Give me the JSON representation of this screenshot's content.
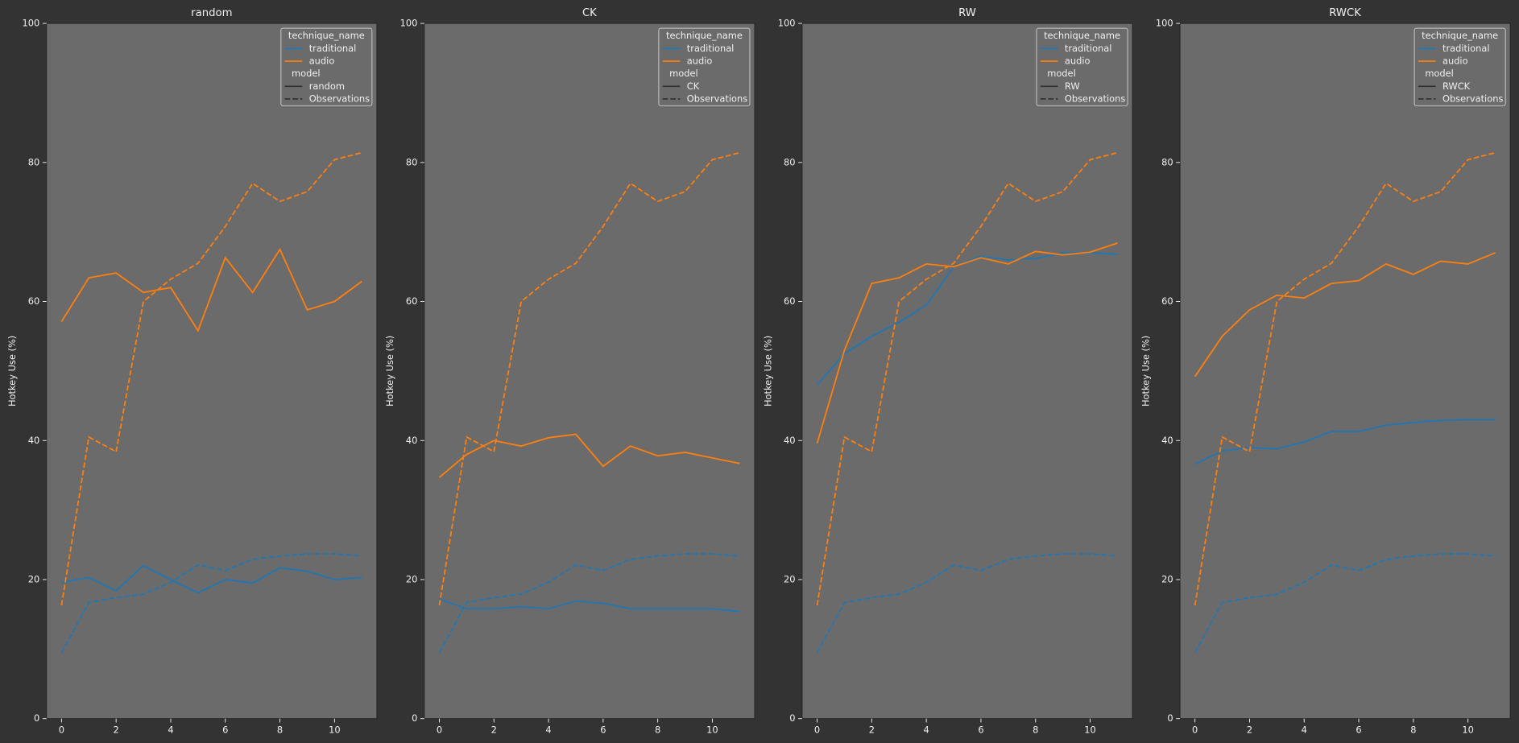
{
  "chart_data": [
    {
      "type": "line",
      "title": "random",
      "ylabel": "Hotkey Use (%)",
      "x": [
        0,
        1,
        2,
        3,
        4,
        5,
        6,
        7,
        8,
        9,
        10,
        11
      ],
      "xlim": [
        -0.55,
        11.55
      ],
      "xticks": [
        0,
        2,
        4,
        6,
        8,
        10
      ],
      "ylim": [
        0,
        100
      ],
      "yticks": [
        0,
        20,
        40,
        60,
        80,
        100
      ],
      "legend": {
        "position": "upper right",
        "hue_title": "technique_name",
        "hue": [
          {
            "name": "traditional",
            "color": "#1f77b4"
          },
          {
            "name": "audio",
            "color": "#ff7f0e"
          }
        ],
        "style_title": "model",
        "style": [
          {
            "name": "random",
            "dash": "solid"
          },
          {
            "name": "Observations",
            "dash": "dashed"
          }
        ]
      },
      "series": [
        {
          "name": "traditional",
          "model": "random",
          "color": "#1f77b4",
          "dash": "solid",
          "values": [
            19.6,
            20.3,
            18.4,
            22,
            20,
            18.1,
            20,
            19.5,
            21.7,
            21.2,
            20,
            20.3
          ]
        },
        {
          "name": "audio",
          "model": "random",
          "color": "#ff7f0e",
          "dash": "solid",
          "values": [
            57.1,
            63.4,
            64.1,
            61.3,
            62,
            55.8,
            66.3,
            61.3,
            67.5,
            58.8,
            60,
            62.9
          ]
        },
        {
          "name": "traditional",
          "model": "Observations",
          "color": "#1f77b4",
          "dash": "dashed",
          "values": [
            9.5,
            16.7,
            17.4,
            17.9,
            19.6,
            22.1,
            21.3,
            22.9,
            23.4,
            23.7,
            23.7,
            23.4
          ]
        },
        {
          "name": "audio",
          "model": "Observations",
          "color": "#ff7f0e",
          "dash": "dashed",
          "values": [
            16.3,
            40.5,
            38.4,
            60,
            63.2,
            65.5,
            70.8,
            77,
            74.4,
            75.8,
            80.4,
            81.4
          ]
        }
      ]
    },
    {
      "type": "line",
      "title": "CK",
      "ylabel": "Hotkey Use (%)",
      "x": [
        0,
        1,
        2,
        3,
        4,
        5,
        6,
        7,
        8,
        9,
        10,
        11
      ],
      "xlim": [
        -0.55,
        11.55
      ],
      "xticks": [
        0,
        2,
        4,
        6,
        8,
        10
      ],
      "ylim": [
        0,
        100
      ],
      "yticks": [
        0,
        20,
        40,
        60,
        80,
        100
      ],
      "legend": {
        "position": "upper right",
        "hue_title": "technique_name",
        "hue": [
          {
            "name": "traditional",
            "color": "#1f77b4"
          },
          {
            "name": "audio",
            "color": "#ff7f0e"
          }
        ],
        "style_title": "model",
        "style": [
          {
            "name": "CK",
            "dash": "solid"
          },
          {
            "name": "Observations",
            "dash": "dashed"
          }
        ]
      },
      "series": [
        {
          "name": "traditional",
          "model": "CK",
          "color": "#1f77b4",
          "dash": "solid",
          "values": [
            17.2,
            15.8,
            15.8,
            16.1,
            15.8,
            16.9,
            16.6,
            15.8,
            15.8,
            15.8,
            15.8,
            15.4
          ]
        },
        {
          "name": "audio",
          "model": "CK",
          "color": "#ff7f0e",
          "dash": "solid",
          "values": [
            34.7,
            38,
            40,
            39.2,
            40.4,
            40.9,
            36.3,
            39.2,
            37.8,
            38.3,
            37.5,
            36.7
          ]
        },
        {
          "name": "traditional",
          "model": "Observations",
          "color": "#1f77b4",
          "dash": "dashed",
          "values": [
            9.5,
            16.7,
            17.4,
            17.9,
            19.6,
            22.1,
            21.3,
            22.9,
            23.4,
            23.7,
            23.7,
            23.4
          ]
        },
        {
          "name": "audio",
          "model": "Observations",
          "color": "#ff7f0e",
          "dash": "dashed",
          "values": [
            16.3,
            40.5,
            38.4,
            60,
            63.2,
            65.5,
            70.8,
            77,
            74.4,
            75.8,
            80.4,
            81.4
          ]
        }
      ]
    },
    {
      "type": "line",
      "title": "RW",
      "ylabel": "Hotkey Use (%)",
      "x": [
        0,
        1,
        2,
        3,
        4,
        5,
        6,
        7,
        8,
        9,
        10,
        11
      ],
      "xlim": [
        -0.55,
        11.55
      ],
      "xticks": [
        0,
        2,
        4,
        6,
        8,
        10
      ],
      "ylim": [
        0,
        100
      ],
      "yticks": [
        0,
        20,
        40,
        60,
        80,
        100
      ],
      "legend": {
        "position": "upper right",
        "hue_title": "technique_name",
        "hue": [
          {
            "name": "traditional",
            "color": "#1f77b4"
          },
          {
            "name": "audio",
            "color": "#ff7f0e"
          }
        ],
        "style_title": "model",
        "style": [
          {
            "name": "RW",
            "dash": "solid"
          },
          {
            "name": "Observations",
            "dash": "dashed"
          }
        ]
      },
      "series": [
        {
          "name": "traditional",
          "model": "RW",
          "color": "#1f77b4",
          "dash": "solid",
          "values": [
            48,
            52.5,
            55,
            57,
            59.5,
            65,
            66.5,
            66,
            66.2,
            67,
            67,
            66.8
          ]
        },
        {
          "name": "audio",
          "model": "RW",
          "color": "#ff7f0e",
          "dash": "solid",
          "values": [
            39.6,
            53,
            62.6,
            63.4,
            65.4,
            65,
            66.3,
            65.4,
            67.2,
            66.7,
            67.1,
            68.4
          ]
        },
        {
          "name": "traditional",
          "model": "Observations",
          "color": "#1f77b4",
          "dash": "dashed",
          "values": [
            9.5,
            16.7,
            17.4,
            17.9,
            19.6,
            22.1,
            21.3,
            22.9,
            23.4,
            23.7,
            23.7,
            23.4
          ]
        },
        {
          "name": "audio",
          "model": "Observations",
          "color": "#ff7f0e",
          "dash": "dashed",
          "values": [
            16.3,
            40.5,
            38.4,
            60,
            63.2,
            65.5,
            70.8,
            77,
            74.4,
            75.8,
            80.4,
            81.4
          ]
        }
      ]
    },
    {
      "type": "line",
      "title": "RWCK",
      "ylabel": "Hotkey Use (%)",
      "x": [
        0,
        1,
        2,
        3,
        4,
        5,
        6,
        7,
        8,
        9,
        10,
        11
      ],
      "xlim": [
        -0.55,
        11.55
      ],
      "xticks": [
        0,
        2,
        4,
        6,
        8,
        10
      ],
      "ylim": [
        0,
        100
      ],
      "yticks": [
        0,
        20,
        40,
        60,
        80,
        100
      ],
      "legend": {
        "position": "upper right",
        "hue_title": "technique_name",
        "hue": [
          {
            "name": "traditional",
            "color": "#1f77b4"
          },
          {
            "name": "audio",
            "color": "#ff7f0e"
          }
        ],
        "style_title": "model",
        "style": [
          {
            "name": "RWCK",
            "dash": "solid"
          },
          {
            "name": "Observations",
            "dash": "dashed"
          }
        ]
      },
      "series": [
        {
          "name": "traditional",
          "model": "RWCK",
          "color": "#1f77b4",
          "dash": "solid",
          "values": [
            36.6,
            38.5,
            39,
            38.8,
            39.8,
            41.3,
            41.3,
            42.2,
            42.6,
            42.9,
            43,
            43
          ]
        },
        {
          "name": "audio",
          "model": "RWCK",
          "color": "#ff7f0e",
          "dash": "solid",
          "values": [
            49.2,
            55,
            58.8,
            60.9,
            60.5,
            62.6,
            63,
            65.4,
            63.9,
            65.8,
            65.4,
            67
          ]
        },
        {
          "name": "traditional",
          "model": "Observations",
          "color": "#1f77b4",
          "dash": "dashed",
          "values": [
            9.5,
            16.7,
            17.4,
            17.9,
            19.6,
            22.1,
            21.3,
            22.9,
            23.4,
            23.7,
            23.7,
            23.4
          ]
        },
        {
          "name": "audio",
          "model": "Observations",
          "color": "#ff7f0e",
          "dash": "dashed",
          "values": [
            16.3,
            40.5,
            38.4,
            60,
            63.2,
            65.5,
            70.8,
            77,
            74.4,
            75.8,
            80.4,
            81.4
          ]
        }
      ]
    }
  ]
}
